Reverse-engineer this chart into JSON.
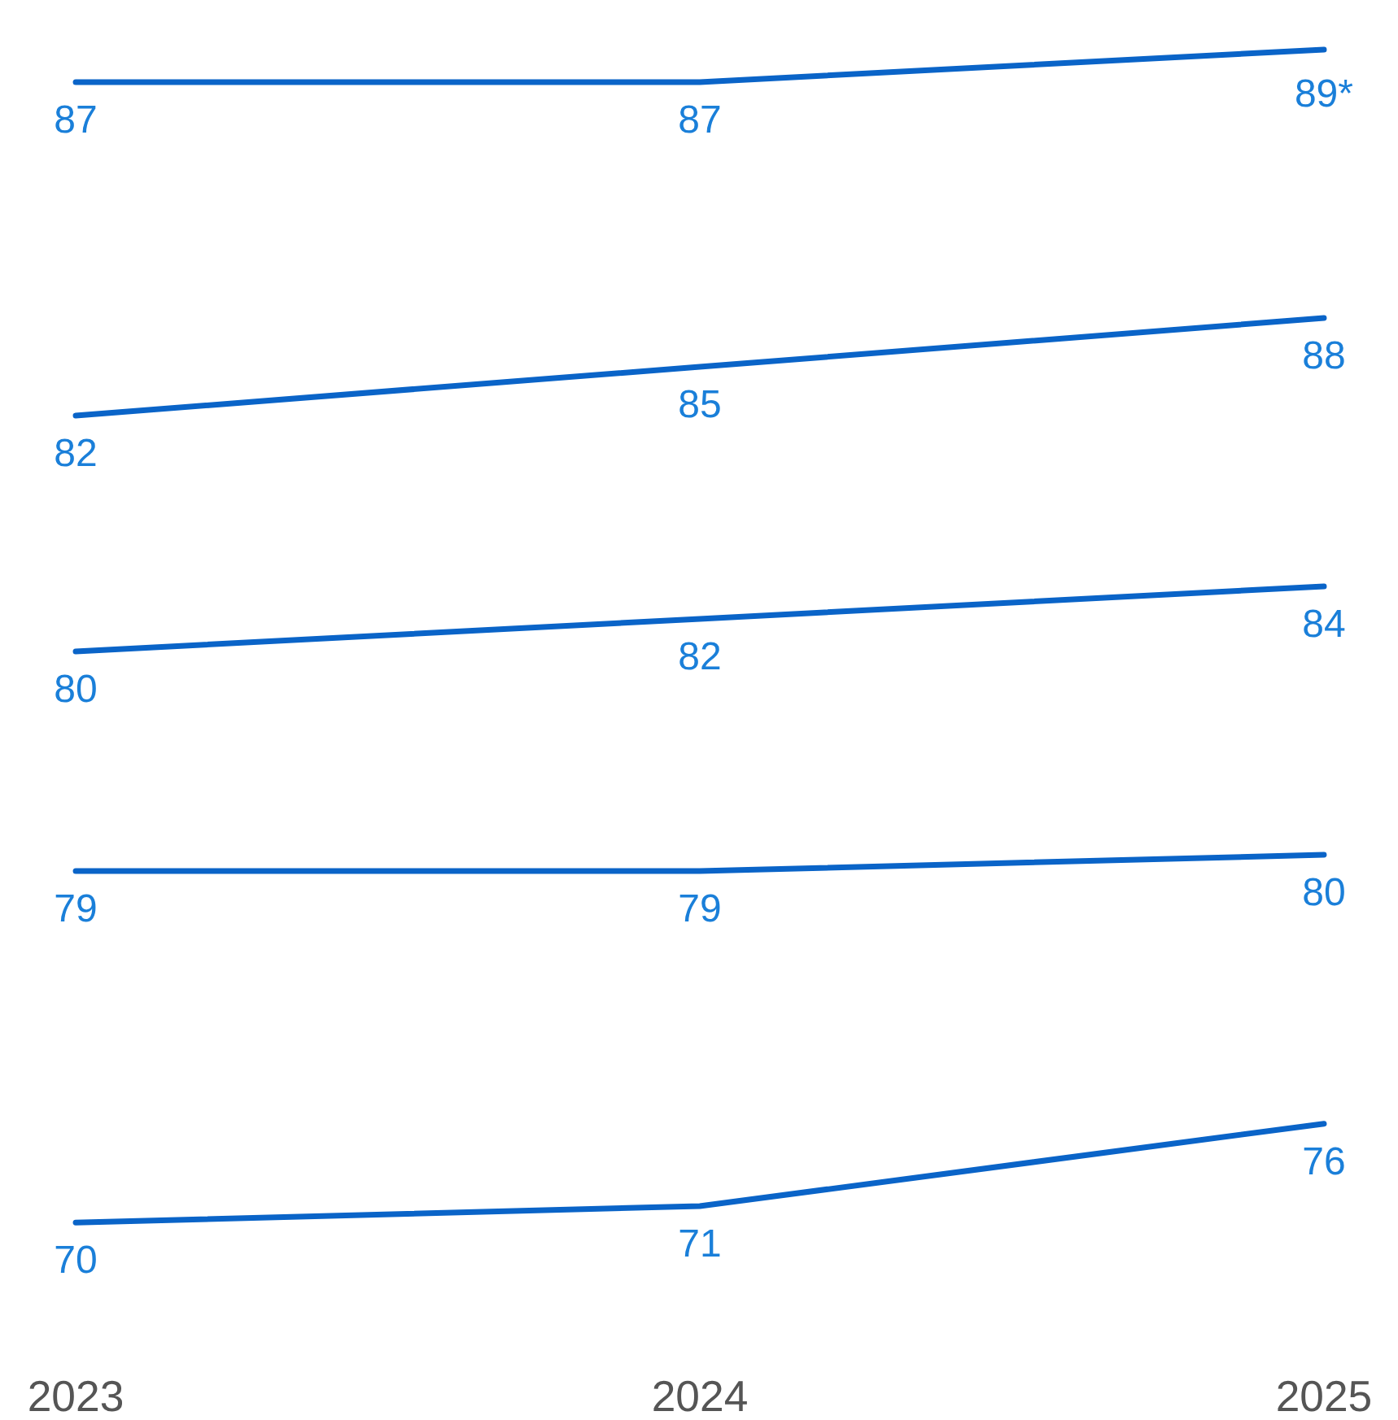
{
  "chart_data": [
    {
      "type": "line",
      "categories": [
        "2023",
        "2024",
        "2025"
      ],
      "series": [
        {
          "color": "#0a64c8",
          "values": [
            87,
            87,
            89
          ],
          "value_labels": [
            "87",
            "87",
            "89*"
          ]
        }
      ],
      "tick_labels": false
    },
    {
      "type": "line",
      "categories": [
        "2023",
        "2024",
        "2025"
      ],
      "series": [
        {
          "color": "#0a64c8",
          "values": [
            82,
            85,
            88
          ]
        }
      ],
      "data_labels": true,
      "tick_labels": false
    },
    {
      "type": "line",
      "categories": [
        "2023",
        "2024",
        "2025"
      ],
      "series": [
        {
          "color": "#0a64c8",
          "values": [
            80,
            82,
            84
          ]
        }
      ],
      "data_labels": true,
      "tick_labels": false
    },
    {
      "type": "line",
      "categories": [
        "2023",
        "2024",
        "2025"
      ],
      "series": [
        {
          "color": "#0a64c8",
          "values": [
            79,
            79,
            80
          ]
        }
      ],
      "data_labels": true,
      "tick_labels": false
    },
    {
      "type": "line",
      "categories": [
        "2023",
        "2024",
        "2025"
      ],
      "series": [
        {
          "color": "#0a64c8",
          "values": [
            70,
            71,
            76
          ]
        }
      ],
      "data_labels": true,
      "tick_labels": "x"
    }
  ]
}
